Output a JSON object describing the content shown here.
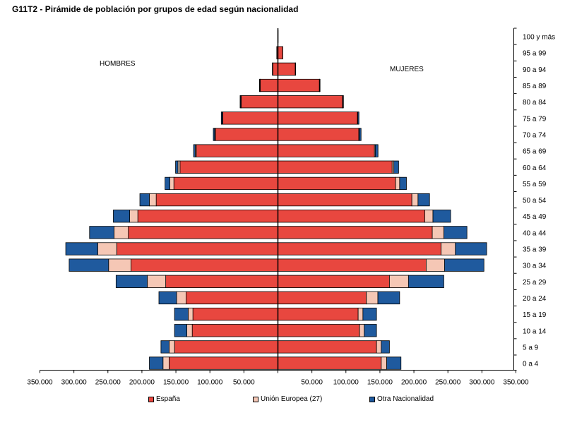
{
  "title": "G11T2 - Pirámide de población por grupos de edad según nacionalidad",
  "chart_data": {
    "type": "bar",
    "orientation": "horizontal",
    "stacked": true,
    "layout": "population-pyramid",
    "group_labels": {
      "left": "HOMBRES",
      "right": "MUJERES"
    },
    "categories": [
      "100 y más",
      "95 a 99",
      "90 a 94",
      "85 a 89",
      "80 a 84",
      "75 a 79",
      "70 a 74",
      "65 a 69",
      "60 a 64",
      "55 a 59",
      "50 a 54",
      "45 a 49",
      "40 a 44",
      "35 a 39",
      "30 a 34",
      "25 a 29",
      "20 a 24",
      "15 a 19",
      "10 a 14",
      "5 a 9",
      "0 a 4"
    ],
    "x_ticks_left": [
      "350.000",
      "300.000",
      "250.000",
      "200.000",
      "150.000",
      "100.000",
      "50.000"
    ],
    "x_ticks_right": [
      "50.000",
      "100.000",
      "150.000",
      "200.000",
      "250.000",
      "300.000",
      "350.000"
    ],
    "xlim": [
      -350000,
      350000
    ],
    "grid": false,
    "legend_position": "bottom",
    "series": [
      {
        "name": "España",
        "color": "#e8473f",
        "hombres": [
          200,
          1500,
          7500,
          26000,
          54000,
          81000,
          92000,
          120000,
          144000,
          153000,
          179000,
          206000,
          220000,
          237000,
          216000,
          165000,
          135000,
          125000,
          126000,
          152000,
          160000
        ],
        "mujeres": [
          300,
          7000,
          25500,
          61000,
          95000,
          117000,
          119000,
          142000,
          168000,
          173000,
          197000,
          216000,
          227000,
          240000,
          218000,
          164000,
          130000,
          118000,
          120000,
          145000,
          152000
        ]
      },
      {
        "name": "Unión Europea (27)",
        "color": "#f5c7b5",
        "hombres": [
          0,
          0,
          200,
          400,
          600,
          800,
          1000,
          1500,
          3000,
          6000,
          10000,
          12000,
          21000,
          28000,
          33000,
          27000,
          14000,
          7000,
          8000,
          8000,
          9000
        ],
        "mujeres": [
          0,
          0,
          200,
          400,
          500,
          700,
          800,
          1200,
          2500,
          6000,
          9000,
          12000,
          17000,
          21000,
          27000,
          28000,
          17000,
          7000,
          7000,
          7000,
          8000
        ]
      },
      {
        "name": "Otra Nacionalidad",
        "color": "#1f5a9e",
        "hombres": [
          0,
          200,
          500,
          800,
          1000,
          1500,
          2000,
          2500,
          3500,
          7000,
          14000,
          24000,
          36000,
          47000,
          58000,
          46000,
          26000,
          20000,
          18000,
          12000,
          20000
        ],
        "mujeres": [
          0,
          200,
          400,
          600,
          900,
          1500,
          2500,
          4000,
          7000,
          10000,
          17000,
          26000,
          34000,
          46000,
          58000,
          52000,
          32000,
          20000,
          18000,
          12000,
          21000
        ]
      }
    ]
  }
}
